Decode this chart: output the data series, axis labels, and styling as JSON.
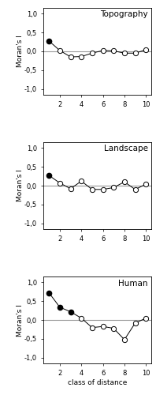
{
  "panels": [
    {
      "title": "Topography",
      "x": [
        1,
        2,
        3,
        4,
        5,
        6,
        7,
        8,
        9,
        10
      ],
      "y": [
        0.27,
        0.02,
        -0.15,
        -0.14,
        -0.05,
        0.02,
        0.01,
        -0.05,
        -0.05,
        0.04
      ],
      "significant_bonf": [
        1
      ],
      "significant_005": []
    },
    {
      "title": "Landscape",
      "x": [
        1,
        2,
        3,
        4,
        5,
        6,
        7,
        8,
        9,
        10
      ],
      "y": [
        0.27,
        0.07,
        -0.08,
        0.12,
        -0.1,
        -0.1,
        -0.05,
        0.1,
        -0.1,
        0.04
      ],
      "significant_bonf": [
        1
      ],
      "significant_005": []
    },
    {
      "title": "Human",
      "x": [
        1,
        2,
        3,
        4,
        5,
        6,
        7,
        8,
        9,
        10
      ],
      "y": [
        0.72,
        0.34,
        0.22,
        0.05,
        -0.2,
        -0.17,
        -0.22,
        -0.52,
        -0.08,
        0.05
      ],
      "significant_bonf": [
        1,
        2,
        3
      ],
      "significant_005": []
    }
  ],
  "ylim": [
    -1.15,
    1.15
  ],
  "yticks": [
    -1.0,
    -0.5,
    0.0,
    0.5,
    1.0
  ],
  "ytick_labels": [
    "-1,0",
    "-0,5",
    "0,0",
    "0,5",
    "1,0"
  ],
  "xticks": [
    2,
    4,
    6,
    8,
    10
  ],
  "xlabel": "class of distance",
  "ylabel": "Moran's I",
  "hline_color": "#999999",
  "line_color": "black",
  "open_color": "white",
  "closed_color": "black",
  "markersize": 4.5,
  "linewidth": 0.7,
  "title_fontsize": 7.5,
  "label_fontsize": 6.5,
  "tick_fontsize": 6.0
}
